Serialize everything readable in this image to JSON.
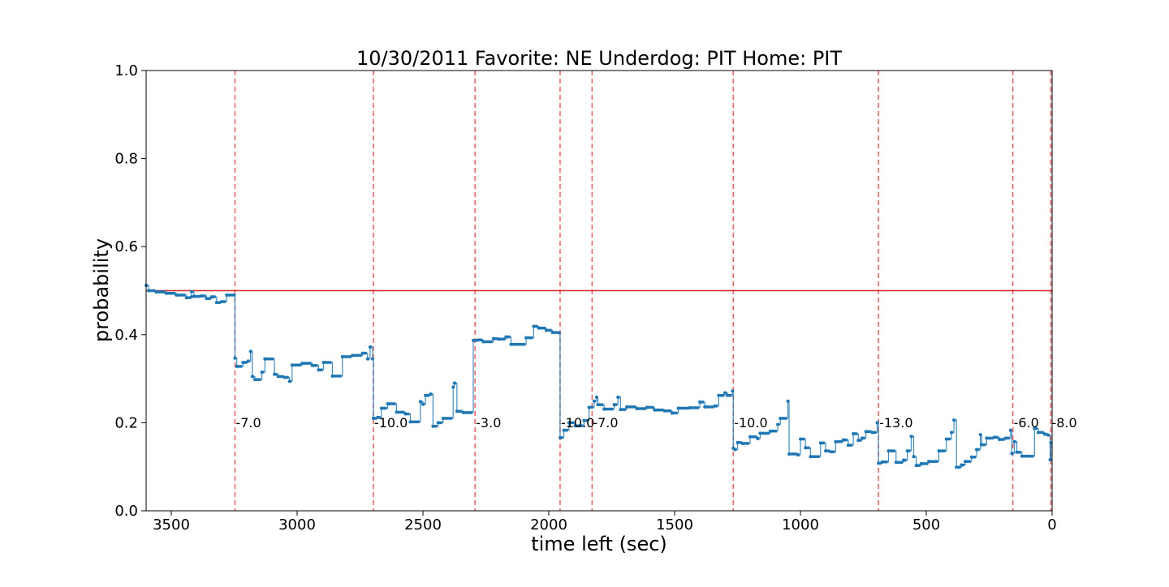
{
  "chart_data": {
    "type": "line",
    "title": "10/30/2011 Favorite: NE Underdog: PIT Home: PIT",
    "xlabel": "time left (sec)",
    "ylabel": "probability",
    "xlim": [
      3600,
      0
    ],
    "ylim": [
      0.0,
      1.0
    ],
    "x_inverted": true,
    "x_ticks": [
      3500,
      3000,
      2500,
      2000,
      1500,
      1000,
      500,
      0
    ],
    "y_ticks": [
      0.0,
      0.2,
      0.4,
      0.6,
      0.8,
      1.0
    ],
    "x_tick_labels": [
      "3500",
      "3000",
      "2500",
      "2000",
      "1500",
      "1000",
      "500",
      "0"
    ],
    "y_tick_labels": [
      "0.0",
      "0.2",
      "0.4",
      "0.6",
      "0.8",
      "1.0"
    ],
    "grid": false,
    "reference_line": {
      "y": 0.5,
      "color": "#d62728"
    },
    "score_changes": [
      {
        "x": 3247,
        "label": "-7.0"
      },
      {
        "x": 2697,
        "label": "-10.0"
      },
      {
        "x": 2293,
        "label": "-3.0"
      },
      {
        "x": 1955,
        "label": "-10.0"
      },
      {
        "x": 1828,
        "label": "-7.0"
      },
      {
        "x": 1267,
        "label": "-10.0"
      },
      {
        "x": 690,
        "label": "-13.0"
      },
      {
        "x": 156,
        "label": "-6.0"
      },
      {
        "x": 5,
        "label": "-8.0"
      }
    ],
    "series": [
      {
        "color": "#1f77b4",
        "points": [
          [
            3600,
            0.512
          ],
          [
            3590,
            0.5
          ],
          [
            3560,
            0.497
          ],
          [
            3520,
            0.494
          ],
          [
            3480,
            0.49
          ],
          [
            3440,
            0.484
          ],
          [
            3420,
            0.486
          ],
          [
            3420,
            0.498
          ],
          [
            3410,
            0.487
          ],
          [
            3380,
            0.488
          ],
          [
            3360,
            0.482
          ],
          [
            3340,
            0.486
          ],
          [
            3320,
            0.473
          ],
          [
            3300,
            0.475
          ],
          [
            3280,
            0.49
          ],
          [
            3250,
            0.49
          ],
          [
            3247,
            0.347
          ],
          [
            3240,
            0.328
          ],
          [
            3215,
            0.337
          ],
          [
            3195,
            0.34
          ],
          [
            3185,
            0.362
          ],
          [
            3178,
            0.305
          ],
          [
            3168,
            0.298
          ],
          [
            3140,
            0.315
          ],
          [
            3128,
            0.345
          ],
          [
            3090,
            0.31
          ],
          [
            3075,
            0.305
          ],
          [
            3050,
            0.303
          ],
          [
            3030,
            0.294
          ],
          [
            3020,
            0.331
          ],
          [
            2980,
            0.335
          ],
          [
            2940,
            0.33
          ],
          [
            2915,
            0.32
          ],
          [
            2895,
            0.337
          ],
          [
            2860,
            0.306
          ],
          [
            2820,
            0.35
          ],
          [
            2780,
            0.353
          ],
          [
            2740,
            0.358
          ],
          [
            2720,
            0.345
          ],
          [
            2710,
            0.372
          ],
          [
            2700,
            0.345
          ],
          [
            2697,
            0.21
          ],
          [
            2680,
            0.212
          ],
          [
            2665,
            0.233
          ],
          [
            2640,
            0.243
          ],
          [
            2605,
            0.224
          ],
          [
            2570,
            0.22
          ],
          [
            2550,
            0.202
          ],
          [
            2510,
            0.248
          ],
          [
            2500,
            0.242
          ],
          [
            2490,
            0.262
          ],
          [
            2470,
            0.265
          ],
          [
            2460,
            0.192
          ],
          [
            2440,
            0.2
          ],
          [
            2420,
            0.21
          ],
          [
            2380,
            0.281
          ],
          [
            2375,
            0.29
          ],
          [
            2365,
            0.226
          ],
          [
            2340,
            0.223
          ],
          [
            2300,
            0.387
          ],
          [
            2280,
            0.388
          ],
          [
            2260,
            0.384
          ],
          [
            2220,
            0.391
          ],
          [
            2200,
            0.39
          ],
          [
            2170,
            0.395
          ],
          [
            2150,
            0.378
          ],
          [
            2090,
            0.393
          ],
          [
            2060,
            0.419
          ],
          [
            2040,
            0.415
          ],
          [
            2010,
            0.41
          ],
          [
            1985,
            0.405
          ],
          [
            1958,
            0.404
          ],
          [
            1955,
            0.166
          ],
          [
            1940,
            0.183
          ],
          [
            1920,
            0.2
          ],
          [
            1895,
            0.193
          ],
          [
            1860,
            0.205
          ],
          [
            1840,
            0.235
          ],
          [
            1820,
            0.249
          ],
          [
            1810,
            0.258
          ],
          [
            1805,
            0.241
          ],
          [
            1780,
            0.231
          ],
          [
            1740,
            0.241
          ],
          [
            1725,
            0.258
          ],
          [
            1715,
            0.23
          ],
          [
            1690,
            0.236
          ],
          [
            1650,
            0.232
          ],
          [
            1610,
            0.235
          ],
          [
            1580,
            0.229
          ],
          [
            1540,
            0.227
          ],
          [
            1510,
            0.222
          ],
          [
            1485,
            0.233
          ],
          [
            1440,
            0.234
          ],
          [
            1400,
            0.247
          ],
          [
            1380,
            0.236
          ],
          [
            1340,
            0.238
          ],
          [
            1325,
            0.262
          ],
          [
            1300,
            0.268
          ],
          [
            1290,
            0.262
          ],
          [
            1270,
            0.272
          ],
          [
            1267,
            0.142
          ],
          [
            1260,
            0.139
          ],
          [
            1250,
            0.155
          ],
          [
            1230,
            0.153
          ],
          [
            1200,
            0.168
          ],
          [
            1170,
            0.164
          ],
          [
            1160,
            0.176
          ],
          [
            1120,
            0.181
          ],
          [
            1090,
            0.196
          ],
          [
            1080,
            0.21
          ],
          [
            1050,
            0.249
          ],
          [
            1045,
            0.129
          ],
          [
            1010,
            0.127
          ],
          [
            1000,
            0.163
          ],
          [
            980,
            0.143
          ],
          [
            960,
            0.123
          ],
          [
            920,
            0.154
          ],
          [
            900,
            0.136
          ],
          [
            880,
            0.134
          ],
          [
            860,
            0.157
          ],
          [
            830,
            0.161
          ],
          [
            810,
            0.149
          ],
          [
            790,
            0.175
          ],
          [
            770,
            0.16
          ],
          [
            755,
            0.165
          ],
          [
            740,
            0.18
          ],
          [
            715,
            0.178
          ],
          [
            695,
            0.2
          ],
          [
            690,
            0.108
          ],
          [
            675,
            0.111
          ],
          [
            650,
            0.136
          ],
          [
            620,
            0.11
          ],
          [
            590,
            0.115
          ],
          [
            575,
            0.136
          ],
          [
            560,
            0.169
          ],
          [
            550,
            0.123
          ],
          [
            540,
            0.103
          ],
          [
            520,
            0.107
          ],
          [
            490,
            0.112
          ],
          [
            450,
            0.136
          ],
          [
            420,
            0.163
          ],
          [
            400,
            0.178
          ],
          [
            390,
            0.206
          ],
          [
            380,
            0.099
          ],
          [
            360,
            0.104
          ],
          [
            345,
            0.112
          ],
          [
            320,
            0.122
          ],
          [
            300,
            0.139
          ],
          [
            285,
            0.173
          ],
          [
            280,
            0.15
          ],
          [
            260,
            0.165
          ],
          [
            230,
            0.167
          ],
          [
            210,
            0.162
          ],
          [
            185,
            0.165
          ],
          [
            165,
            0.183
          ],
          [
            160,
            0.13
          ],
          [
            150,
            0.157
          ],
          [
            140,
            0.133
          ],
          [
            120,
            0.124
          ],
          [
            100,
            0.124
          ],
          [
            70,
            0.187
          ],
          [
            55,
            0.178
          ],
          [
            30,
            0.174
          ],
          [
            15,
            0.172
          ],
          [
            8,
            0.116
          ],
          [
            5,
            0.155
          ]
        ]
      }
    ]
  }
}
